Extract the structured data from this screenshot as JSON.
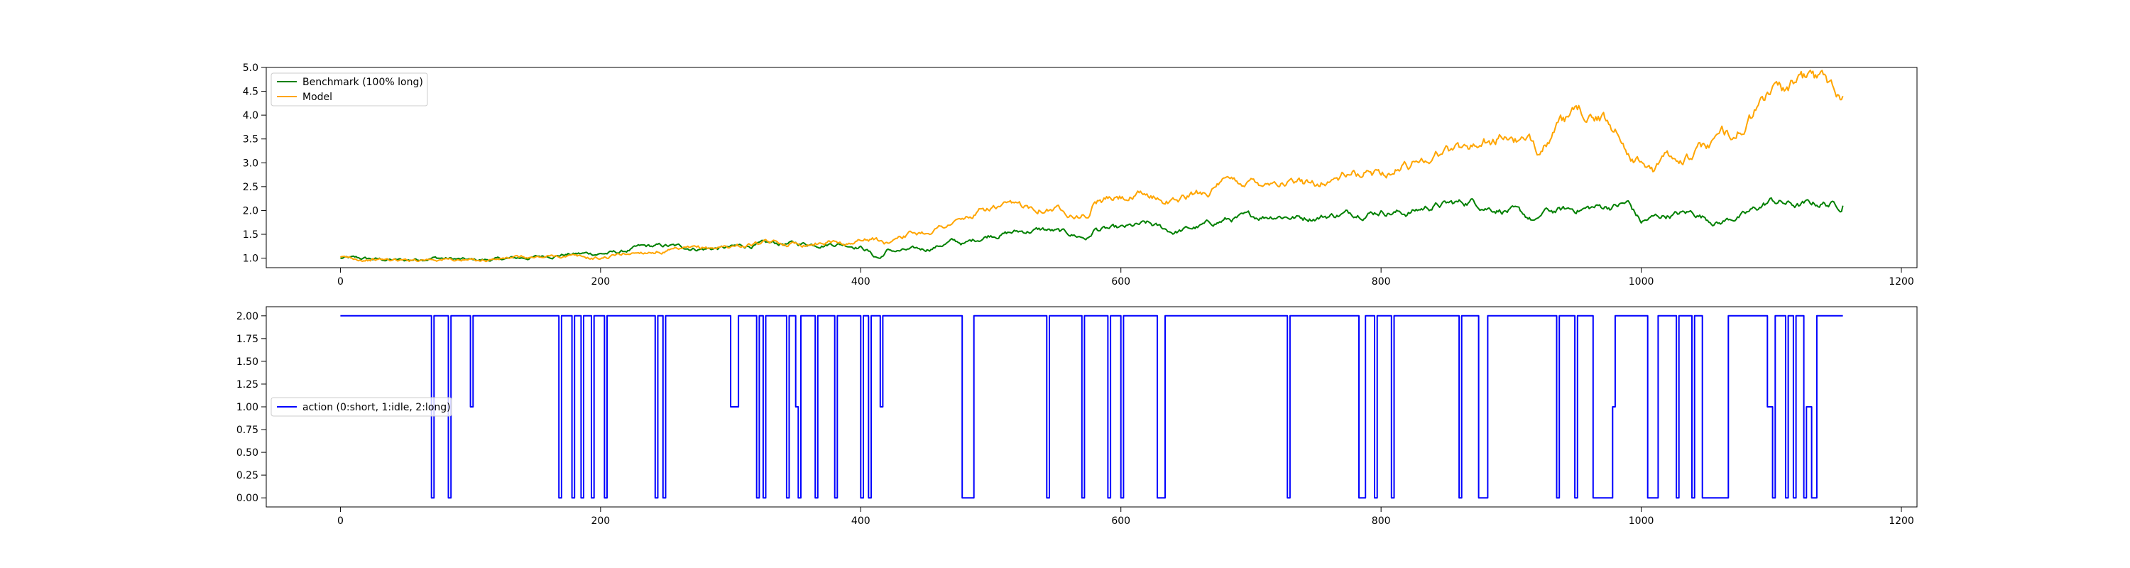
{
  "chart_data": [
    {
      "type": "line",
      "title": "",
      "xlabel": "",
      "ylabel": "",
      "xlim": [
        -57,
        1212
      ],
      "ylim": [
        0.8,
        5.0
      ],
      "x_ticks": [
        0,
        200,
        400,
        600,
        800,
        1000,
        1200
      ],
      "x_tick_labels": [
        "0",
        "200",
        "400",
        "600",
        "800",
        "1000",
        "1200"
      ],
      "y_ticks": [
        1.0,
        1.5,
        2.0,
        2.5,
        3.0,
        3.5,
        4.0,
        4.5,
        5.0
      ],
      "y_tick_labels": [
        "1.0",
        "1.5",
        "2.0",
        "2.5",
        "3.0",
        "3.5",
        "4.0",
        "4.5",
        "5.0"
      ],
      "grid": false,
      "legend_position": "upper-left",
      "series": [
        {
          "name": "Benchmark (100% long)",
          "color": "#008000",
          "x": [
            0,
            50,
            70,
            100,
            120,
            150,
            170,
            200,
            215,
            230,
            250,
            280,
            300,
            320,
            340,
            360,
            380,
            395,
            400,
            405,
            410,
            415,
            420,
            430,
            450,
            470,
            480,
            500,
            520,
            540,
            560,
            575,
            580,
            600,
            620,
            640,
            660,
            680,
            700,
            720,
            740,
            760,
            780,
            800,
            820,
            840,
            860,
            870,
            880,
            900,
            920,
            925,
            940,
            960,
            980,
            990,
            1000,
            1010,
            1020,
            1040,
            1060,
            1070,
            1080,
            1100,
            1110,
            1120,
            1140,
            1155
          ],
          "values": [
            1.0,
            0.95,
            1.02,
            0.95,
            0.97,
            1.02,
            1.08,
            1.1,
            1.12,
            1.22,
            1.25,
            1.2,
            1.22,
            1.28,
            1.3,
            1.3,
            1.32,
            1.28,
            1.25,
            1.18,
            1.05,
            1.0,
            1.15,
            1.15,
            1.18,
            1.35,
            1.3,
            1.5,
            1.55,
            1.6,
            1.5,
            1.42,
            1.6,
            1.6,
            1.7,
            1.55,
            1.65,
            1.8,
            1.85,
            1.92,
            1.85,
            1.9,
            1.95,
            2.0,
            1.95,
            2.1,
            2.15,
            2.2,
            2.1,
            2.0,
            1.75,
            1.95,
            2.0,
            2.05,
            2.1,
            2.15,
            1.75,
            1.85,
            1.9,
            1.95,
            1.75,
            1.85,
            1.9,
            2.2,
            2.15,
            2.1,
            2.15,
            2.1
          ]
        },
        {
          "name": "Model",
          "color": "#ffa500",
          "x": [
            0,
            50,
            70,
            100,
            130,
            150,
            170,
            190,
            200,
            220,
            240,
            260,
            280,
            300,
            320,
            340,
            360,
            380,
            395,
            400,
            410,
            420,
            430,
            450,
            470,
            480,
            500,
            520,
            540,
            560,
            575,
            580,
            600,
            620,
            640,
            660,
            680,
            700,
            720,
            740,
            760,
            780,
            800,
            820,
            840,
            860,
            880,
            900,
            920,
            925,
            940,
            960,
            980,
            990,
            1000,
            1010,
            1020,
            1040,
            1060,
            1080,
            1100,
            1120,
            1130,
            1140,
            1150,
            1155
          ],
          "values": [
            1.0,
            0.95,
            1.0,
            0.95,
            1.0,
            1.0,
            1.05,
            1.0,
            1.0,
            1.1,
            1.15,
            1.15,
            1.2,
            1.25,
            1.3,
            1.3,
            1.32,
            1.35,
            1.3,
            1.4,
            1.4,
            1.3,
            1.5,
            1.55,
            1.75,
            1.8,
            2.05,
            2.05,
            2.1,
            2.0,
            1.9,
            2.2,
            2.25,
            2.3,
            2.2,
            2.35,
            2.55,
            2.6,
            2.65,
            2.55,
            2.65,
            2.75,
            2.8,
            2.95,
            3.2,
            3.3,
            3.45,
            3.55,
            3.25,
            3.5,
            3.8,
            4.05,
            3.7,
            3.3,
            3.0,
            2.85,
            3.1,
            3.15,
            3.5,
            3.8,
            4.5,
            4.6,
            4.8,
            4.7,
            4.65,
            4.4
          ]
        }
      ]
    },
    {
      "type": "line",
      "title": "",
      "xlabel": "",
      "ylabel": "",
      "xlim": [
        -57,
        1212
      ],
      "ylim": [
        -0.1,
        2.1
      ],
      "x_ticks": [
        0,
        200,
        400,
        600,
        800,
        1000,
        1200
      ],
      "x_tick_labels": [
        "0",
        "200",
        "400",
        "600",
        "800",
        "1000",
        "1200"
      ],
      "y_ticks": [
        0.0,
        0.25,
        0.5,
        0.75,
        1.0,
        1.25,
        1.5,
        1.75,
        2.0
      ],
      "y_tick_labels": [
        "0.00",
        "0.25",
        "0.50",
        "0.75",
        "1.00",
        "1.25",
        "1.50",
        "1.75",
        "2.00"
      ],
      "grid": false,
      "legend_position": "center-left",
      "series": [
        {
          "name": "action (0:short, 1:idle, 2:long)",
          "color": "#0000ff",
          "step_transitions": [
            [
              0,
              2
            ],
            [
              70,
              0
            ],
            [
              72,
              2
            ],
            [
              83,
              0
            ],
            [
              85,
              2
            ],
            [
              100,
              1
            ],
            [
              102,
              2
            ],
            [
              168,
              0
            ],
            [
              170,
              2
            ],
            [
              178,
              0
            ],
            [
              180,
              2
            ],
            [
              185,
              0
            ],
            [
              187,
              2
            ],
            [
              193,
              0
            ],
            [
              195,
              2
            ],
            [
              203,
              0
            ],
            [
              205,
              2
            ],
            [
              242,
              0
            ],
            [
              244,
              2
            ],
            [
              248,
              0
            ],
            [
              250,
              2
            ],
            [
              300,
              1
            ],
            [
              306,
              2
            ],
            [
              320,
              0
            ],
            [
              322,
              2
            ],
            [
              325,
              0
            ],
            [
              327,
              2
            ],
            [
              343,
              0
            ],
            [
              345,
              2
            ],
            [
              350,
              1
            ],
            [
              352,
              0
            ],
            [
              354,
              2
            ],
            [
              365,
              0
            ],
            [
              367,
              2
            ],
            [
              380,
              0
            ],
            [
              382,
              2
            ],
            [
              400,
              0
            ],
            [
              402,
              2
            ],
            [
              406,
              0
            ],
            [
              408,
              2
            ],
            [
              415,
              1
            ],
            [
              417,
              2
            ],
            [
              478,
              0
            ],
            [
              487,
              2
            ],
            [
              543,
              0
            ],
            [
              545,
              2
            ],
            [
              570,
              0
            ],
            [
              572,
              2
            ],
            [
              590,
              0
            ],
            [
              592,
              2
            ],
            [
              600,
              0
            ],
            [
              602,
              2
            ],
            [
              628,
              0
            ],
            [
              634,
              2
            ],
            [
              728,
              0
            ],
            [
              730,
              2
            ],
            [
              783,
              0
            ],
            [
              788,
              2
            ],
            [
              795,
              0
            ],
            [
              797,
              2
            ],
            [
              808,
              0
            ],
            [
              810,
              2
            ],
            [
              860,
              0
            ],
            [
              862,
              2
            ],
            [
              875,
              0
            ],
            [
              882,
              2
            ],
            [
              935,
              0
            ],
            [
              937,
              2
            ],
            [
              949,
              0
            ],
            [
              951,
              2
            ],
            [
              963,
              0
            ],
            [
              978,
              1
            ],
            [
              980,
              2
            ],
            [
              1005,
              0
            ],
            [
              1013,
              2
            ],
            [
              1027,
              0
            ],
            [
              1029,
              2
            ],
            [
              1039,
              0
            ],
            [
              1041,
              2
            ],
            [
              1047,
              0
            ],
            [
              1067,
              2
            ],
            [
              1097,
              1
            ],
            [
              1101,
              0
            ],
            [
              1103,
              2
            ],
            [
              1111,
              0
            ],
            [
              1113,
              2
            ],
            [
              1117,
              0
            ],
            [
              1119,
              2
            ],
            [
              1125,
              0
            ],
            [
              1127,
              1
            ],
            [
              1131,
              0
            ],
            [
              1135,
              2
            ],
            [
              1155,
              2
            ]
          ]
        }
      ]
    }
  ]
}
